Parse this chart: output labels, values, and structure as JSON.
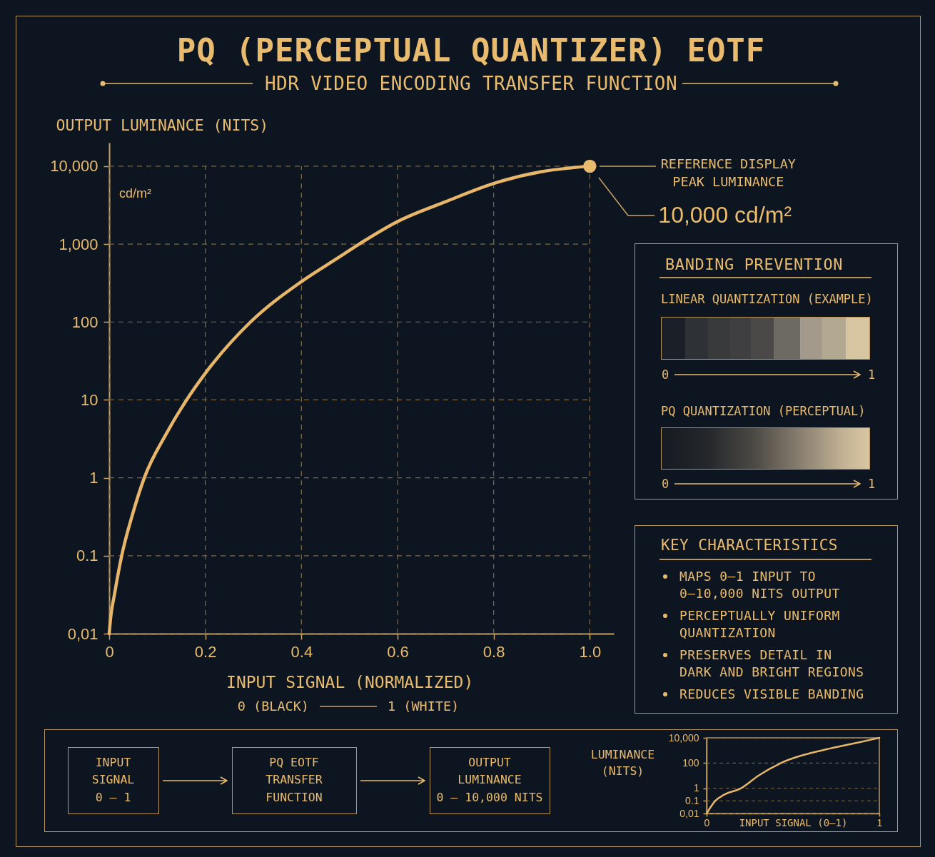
{
  "chart_data": [
    {
      "type": "line",
      "title": "PQ (PERCEPTUAL QUANTIZER) EOTF",
      "subtitle": "HDR VIDEO ENCODING TRANSFER FUNCTION",
      "xlabel": "INPUT SIGNAL (NORMALIZED)",
      "ylabel": "OUTPUT LUMINANCE (NITS)",
      "annotations": [
        "REFERENCE DISPLAY\nPEAK LUMINANCE",
        "10,000 cd/m²",
        "cd/m²",
        "0 (BLACK)",
        "1 (WHITE)"
      ],
      "x": [
        0,
        0.003,
        0.011,
        0.026,
        0.048,
        0.073,
        0.119,
        0.161,
        0.2,
        0.294,
        0.4,
        0.48,
        0.52,
        0.6,
        0.7,
        0.8,
        0.9,
        1
      ],
      "series": [
        {
          "color": "#e7b66b",
          "values": [
            0.01,
            0.016,
            0.032,
            0.1,
            0.33,
            1,
            3.7,
            10,
            22,
            100,
            330,
            690,
            1000,
            1950,
            3500,
            6000,
            8500,
            10000
          ]
        }
      ],
      "xlim": [
        0,
        1.05
      ],
      "ylim": [
        0.01,
        20000
      ],
      "xticks": [
        0,
        0.2,
        0.4,
        0.6,
        0.8,
        {
          "value": 1,
          "label": "1.0"
        }
      ],
      "yticks": [
        {
          "value": 0.01,
          "label": "0,01"
        },
        0.1,
        1,
        10,
        100,
        {
          "value": 1000,
          "label": "1,000"
        },
        {
          "value": 10000,
          "label": "10,000"
        }
      ],
      "log": true,
      "grid": true,
      "line_style": "solid"
    },
    {
      "type": "other",
      "title": "BANDING PREVENTION",
      "annotations": [
        "LINEAR QUANTIZATION (EXAMPLE)",
        "0",
        "1",
        "PQ QUANTIZATION (PERCEPTUAL)",
        "0",
        "1"
      ]
    },
    {
      "type": "other",
      "title": "KEY CHARACTERISTICS",
      "annotations": [
        "MAPS 0–1 INPUT TO 0–10,000 NITS OUTPUT",
        "PERCEPTUALLY UNIFORM QUANTIZATION",
        "PRESERVES DETAIL IN DARK AND BRIGHT REGIONS",
        "REDUCES VISIBLE BANDING"
      ]
    },
    {
      "type": "other",
      "annotations": [
        "INPUT\nSIGNAL\n0 – 1",
        "PQ EOTF\nTRANSFER\nFUNCTION",
        "OUTPUT\nLUMINANCE\n0 – 10,000 NITS"
      ]
    },
    {
      "type": "line",
      "xlabel": "INPUT SIGNAL (0–1)",
      "ylabel": "LUMINANCE\n(NITS)",
      "x": [
        0,
        0.05,
        0.1,
        0.2,
        0.3,
        0.43,
        0.69,
        0.86,
        1
      ],
      "series": [
        {
          "color": "#e7b66b",
          "values": [
            0.01,
            0.1,
            0.3,
            1,
            10,
            100,
            1200,
            3800,
            10000
          ]
        }
      ],
      "xlim": [
        0,
        1
      ],
      "ylim": [
        0.01,
        10000
      ],
      "xticks": [
        0,
        1
      ],
      "yticks": [
        {
          "value": 0.01,
          "label": "0,01"
        },
        0.1,
        1,
        100,
        {
          "value": 10000,
          "label": "10,000"
        }
      ],
      "log": true,
      "grid": "y",
      "line_style": "solid"
    }
  ]
}
